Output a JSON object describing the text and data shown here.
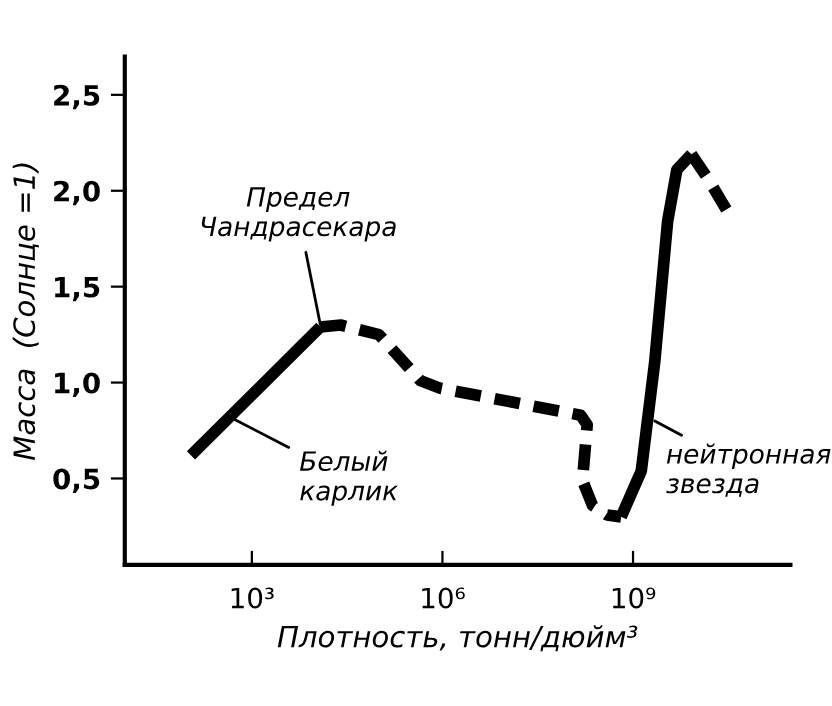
{
  "chart_data": {
    "type": "line",
    "xlabel": "Плотность, тонн/дюйм³",
    "ylabel": "Масса  (Солнце =1)",
    "log": "x",
    "xlim": [
      10,
      300000000000.0
    ],
    "ylim": [
      0.05,
      2.7
    ],
    "xticks": [
      {
        "value": 1000,
        "label": "10³"
      },
      {
        "value": 1000000,
        "label": "10⁶"
      },
      {
        "value": 1000000000,
        "label": "10⁹"
      }
    ],
    "yticks": [
      {
        "value": 0.5,
        "label": "0,5"
      },
      {
        "value": 1.0,
        "label": "1,0"
      },
      {
        "value": 1.5,
        "label": "1,5"
      },
      {
        "value": 2.0,
        "label": "2,0"
      },
      {
        "value": 2.5,
        "label": "2,5"
      }
    ],
    "grid": false,
    "marker": "none",
    "series": [
      {
        "color": "#000000",
        "line_style": "solid",
        "x": [
          110,
          12000
        ],
        "values": [
          0.62,
          1.29
        ]
      },
      {
        "color": "#000000",
        "line_style": "dashed",
        "x": [
          12000,
          25000,
          100000,
          450000,
          930000,
          150000000,
          190000000,
          160000000,
          230000000,
          390000000,
          650000000
        ],
        "values": [
          1.29,
          1.3,
          1.25,
          1.01,
          0.97,
          0.83,
          0.78,
          0.49,
          0.36,
          0.31,
          0.3
        ]
      },
      {
        "color": "#000000",
        "line_style": "solid",
        "x": [
          650000000,
          1350000000,
          2200000000,
          3500000000,
          4900000000,
          8300000000
        ],
        "values": [
          0.3,
          0.54,
          1.11,
          1.84,
          2.11,
          2.19
        ]
      },
      {
        "color": "#000000",
        "line_style": "dashed",
        "x": [
          8300000000,
          16000000000,
          35000000000
        ],
        "values": [
          2.19,
          2.05,
          1.86
        ]
      }
    ],
    "annotations": [
      {
        "text": "Предел\nЧандрасекара",
        "x": 12000,
        "y": 1.3
      },
      {
        "text": "Белый\nкарлик",
        "x": 450,
        "y": 0.82
      },
      {
        "text": "нейтронная\nзвезда",
        "x": 2200000000,
        "y": 0.8
      }
    ]
  }
}
